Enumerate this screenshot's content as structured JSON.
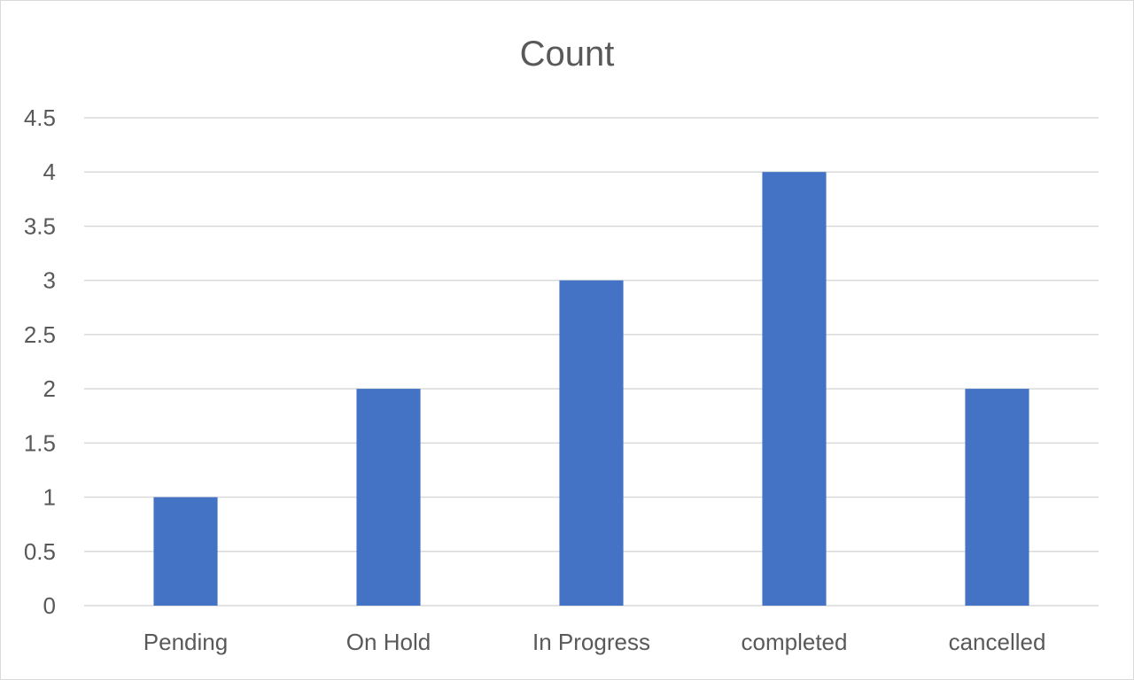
{
  "chart_data": {
    "type": "bar",
    "title": "Count",
    "categories": [
      "Pending",
      "On Hold",
      "In Progress",
      "completed",
      "cancelled"
    ],
    "values": [
      1,
      2,
      3,
      4,
      2
    ],
    "ylim": [
      0,
      4.5
    ],
    "yticks": [
      "0",
      "0.5",
      "1",
      "1.5",
      "2",
      "2.5",
      "3",
      "3.5",
      "4",
      "4.5"
    ],
    "xlabel": "",
    "ylabel": "",
    "grid": true,
    "legend": "none",
    "bar_color": "#4472C4"
  }
}
